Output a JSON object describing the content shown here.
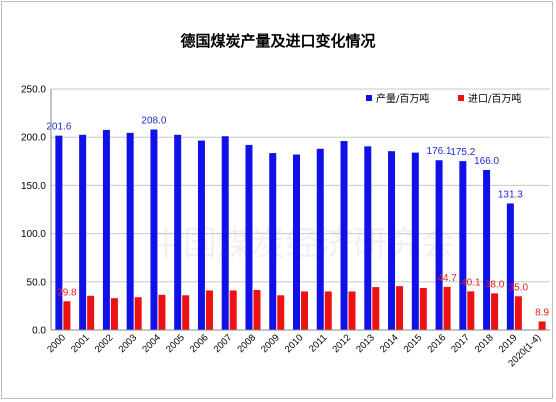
{
  "chart_data": {
    "type": "bar",
    "title": "德国煤炭产量及进口变化情况",
    "ylim": [
      0,
      250
    ],
    "yticks": [
      "0.0",
      "50.0",
      "100.0",
      "150.0",
      "200.0",
      "250.0"
    ],
    "grid": "horizontal",
    "legend_position": "top-right",
    "categories": [
      "2000",
      "2001",
      "2002",
      "2003",
      "2004",
      "2005",
      "2006",
      "2007",
      "2008",
      "2009",
      "2010",
      "2011",
      "2012",
      "2013",
      "2014",
      "2015",
      "2016",
      "2017",
      "2018",
      "2019",
      "2020(1-4)"
    ],
    "series": [
      {
        "name": "产量/百万吨",
        "color": "#1010e8",
        "values": [
          201.6,
          202.5,
          207.5,
          204.5,
          208.0,
          202.5,
          196.5,
          201.0,
          192.0,
          183.5,
          182.0,
          188.0,
          196.0,
          190.5,
          185.5,
          184.0,
          176.1,
          175.2,
          166.0,
          131.3,
          null
        ],
        "labels": {
          "0": "201.6",
          "4": "208.0",
          "16": "176.1",
          "17": "175.2",
          "18": "166.0",
          "19": "131.3"
        }
      },
      {
        "name": "进口/百万吨",
        "color": "#ee1111",
        "values": [
          29.8,
          35.5,
          33.0,
          34.0,
          36.5,
          36.0,
          41.0,
          41.0,
          41.5,
          36.0,
          40.0,
          40.0,
          40.0,
          44.5,
          45.5,
          43.5,
          44.7,
          40.1,
          38.0,
          35.0,
          8.9
        ],
        "labels": {
          "0": "29.8",
          "16": "44.7",
          "17": "40.1",
          "18": "38.0",
          "19": "35.0",
          "20": "8.9"
        }
      }
    ]
  },
  "watermark": "中国煤炭经济研究会"
}
